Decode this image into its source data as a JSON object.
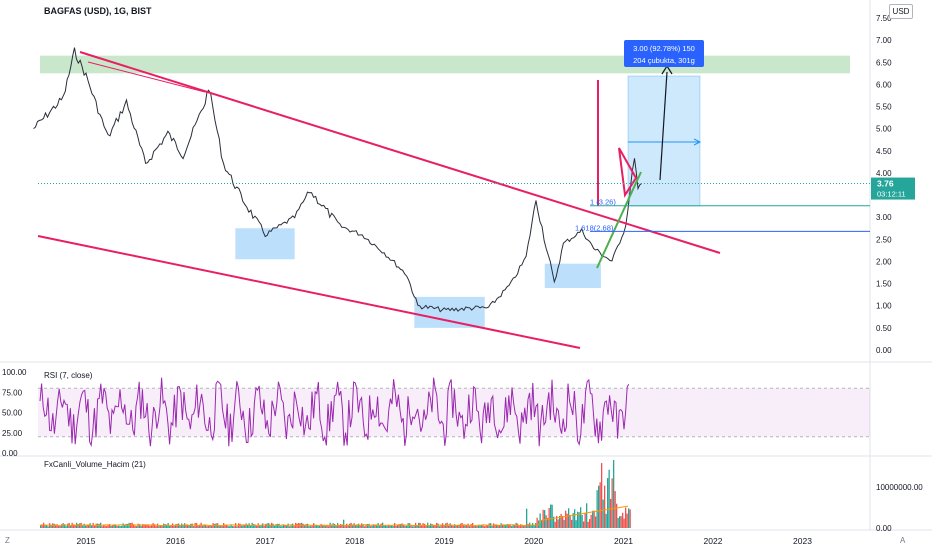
{
  "header": {
    "symbol_title": "BAGFAS (USD), 1G, BIST",
    "currency_button": "USD"
  },
  "corner": {
    "left": "Z",
    "right": "A"
  },
  "colors": {
    "up": "#26a69a",
    "down": "#ef5350",
    "trendline": "#e91e63",
    "zone": "#2196f3",
    "target": "#4caf50",
    "rsi": "#9c27b0",
    "fib": "#2962ff",
    "price": "#26a69a"
  },
  "chart_data": [
    {
      "type": "line",
      "pane": "price",
      "title": "",
      "xlabel": "",
      "ylabel": "",
      "x_ticks": [
        "2015",
        "2016",
        "2017",
        "2018",
        "2019",
        "2020",
        "2021",
        "2022",
        "2023"
      ],
      "y_ticks": [
        "7.50",
        "7.00",
        "6.50",
        "6.00",
        "5.50",
        "5.00",
        "4.50",
        "4.00",
        "3.50",
        "3.00",
        "2.50",
        "2.00",
        "1.50",
        "1.00",
        "0.50",
        "0.00"
      ],
      "ylim": [
        0,
        7.5
      ],
      "series": [
        {
          "x": [
            "2014-06-01",
            "2014-10-01",
            "2014-11-15",
            "2015-01-01",
            "2015-04-01",
            "2015-06-15",
            "2015-09-01",
            "2015-12-01",
            "2016-02-01",
            "2016-05-01",
            "2016-05-15",
            "2016-07-15",
            "2016-10-01",
            "2017-01-01",
            "2017-05-01",
            "2017-07-01",
            "2017-11-01",
            "2018-02-01",
            "2018-05-01",
            "2018-08-01",
            "2018-09-15",
            "2019-01-01",
            "2019-05-01",
            "2019-07-01",
            "2019-10-01",
            "2019-12-01",
            "2020-01-10",
            "2020-03-25",
            "2020-05-01",
            "2020-07-15",
            "2020-09-01",
            "2020-11-15",
            "2021-01-10",
            "2021-02-15",
            "2021-03-01",
            "2021-03-15"
          ],
          "values": [
            5.0,
            5.7,
            6.75,
            6.2,
            4.8,
            5.6,
            4.2,
            4.9,
            4.4,
            5.6,
            5.95,
            4.2,
            3.4,
            2.6,
            3.0,
            3.6,
            2.8,
            2.6,
            2.2,
            1.7,
            1.0,
            0.9,
            0.95,
            0.95,
            1.5,
            2.1,
            3.4,
            1.5,
            2.4,
            2.7,
            2.3,
            2.0,
            2.8,
            4.4,
            3.6,
            3.76
          ]
        }
      ],
      "current_price": {
        "value": "3.76",
        "countdown": "03:12:11"
      },
      "levels": [
        {
          "value": 3.26
        },
        {
          "value": 2.68
        }
      ],
      "fib_labels": [
        "1 (3.26)",
        "1.618(2.68)"
      ],
      "target_zone": {
        "from": 6.25,
        "to": 6.65
      },
      "measure_label": [
        "3.00 (92.78%) 150",
        "204 çubukta, 301g"
      ],
      "accumulation_zones": [
        {
          "x_from": "2016-09-01",
          "x_to": "2017-05-01",
          "y_from": 2.05,
          "y_to": 2.75
        },
        {
          "x_from": "2018-09-01",
          "x_to": "2019-06-15",
          "y_from": 0.5,
          "y_to": 1.2
        },
        {
          "x_from": "2020-02-15",
          "x_to": "2020-10-01",
          "y_from": 1.4,
          "y_to": 1.95
        }
      ]
    },
    {
      "type": "line",
      "pane": "rsi",
      "title": "RSI (7, close)",
      "y_ticks": [
        "100.00",
        "75.00",
        "50.00",
        "25.00",
        "0.00"
      ],
      "ylim": [
        0,
        100
      ],
      "band": [
        20,
        80
      ]
    },
    {
      "type": "bar",
      "pane": "volume",
      "title": "FxCanli_Volume_Hacim (21)",
      "y_ticks": [
        "10000000.00",
        "0.00"
      ],
      "ylim": [
        0,
        17000000
      ]
    }
  ]
}
